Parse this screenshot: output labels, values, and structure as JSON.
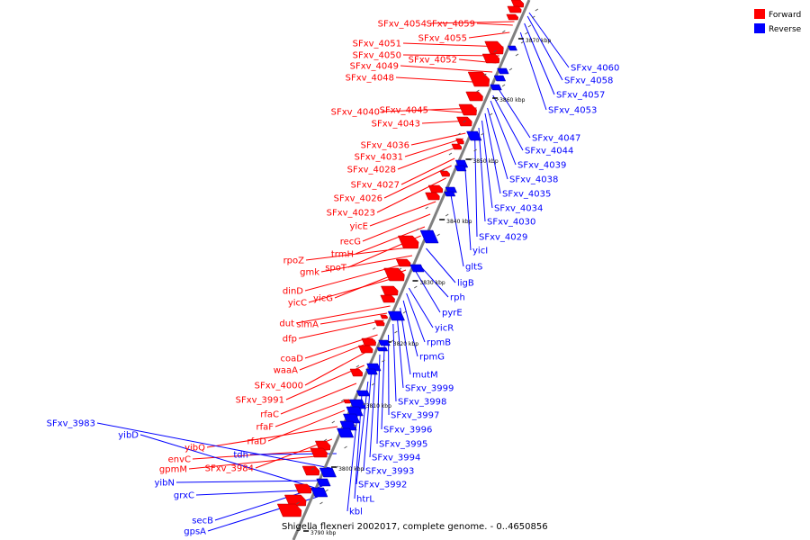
{
  "caption": "Shigella flexneri 2002017, complete genome. - 0..4650856",
  "legend": [
    {
      "label": "Forward",
      "color": "#ff0000"
    },
    {
      "label": "Reverse",
      "color": "#0000ff"
    }
  ],
  "colors": {
    "forward": "#ff0000",
    "reverse": "#0000ff",
    "backbone": "#808080"
  },
  "ticks": [
    "3790 kbp",
    "3800 kbp",
    "3810 kbp",
    "3820 kbp",
    "3830 kbp",
    "3840 kbp",
    "3850 kbp",
    "3860 kbp",
    "3870 kbp"
  ],
  "forward_labels": [
    "SFxv_4054",
    "SFxv_4059",
    "SFxv_4055",
    "SFxv_4051",
    "SFxv_4050",
    "SFxv_4052",
    "SFxv_4049",
    "SFxv_4048",
    "SFxv_4040",
    "SFxv_4045",
    "SFxv_4043",
    "SFxv_4036",
    "SFxv_4031",
    "SFxv_4028",
    "SFxv_4027",
    "SFxv_4026",
    "SFxv_4023",
    "yicE",
    "recG",
    "trmH",
    "rpoZ",
    "spoT",
    "gmk",
    "dinD",
    "yicG",
    "yicC",
    "dut",
    "slmA",
    "dfp",
    "coaD",
    "waaA",
    "SFxv_4000",
    "SFxv_3991",
    "rfaC",
    "rfaF",
    "rfaD",
    "yibQ",
    "SFxv_3984",
    "envC",
    "gpmM"
  ],
  "reverse_labels": [
    "SFxv_4060",
    "SFxv_4058",
    "SFxv_4057",
    "SFxv_4053",
    "SFxv_4047",
    "SFxv_4044",
    "SFxv_4039",
    "SFxv_4038",
    "SFxv_4035",
    "SFxv_4034",
    "SFxv_4030",
    "SFxv_4029",
    "yicI",
    "gltS",
    "ligB",
    "rph",
    "pyrE",
    "yicR",
    "rpmB",
    "rpmG",
    "mutM",
    "SFxv_3999",
    "SFxv_3998",
    "SFxv_3997",
    "SFxv_3996",
    "SFxv_3995",
    "SFxv_3994",
    "SFxv_3993",
    "SFxv_3992",
    "htrL",
    "kbl",
    "tdh",
    "SFxv_3983",
    "yibD",
    "yibN",
    "grxC",
    "secB",
    "gpsA"
  ]
}
